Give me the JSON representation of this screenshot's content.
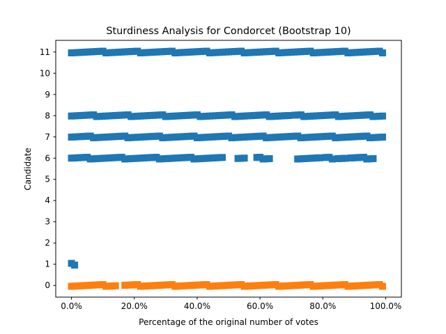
{
  "chart_data": {
    "type": "scatter",
    "title": "Sturdiness Analysis for Condorcet (Bootstrap 10)",
    "xlabel": "Percentage of the original number of votes",
    "ylabel": "Candidate",
    "xlim": [
      -0.05,
      1.05
    ],
    "ylim": [
      -0.55,
      11.55
    ],
    "xticks": [
      0.0,
      0.2,
      0.4,
      0.6,
      0.8,
      1.0
    ],
    "xtick_labels": [
      "0.0%",
      "20.0%",
      "40.0%",
      "60.0%",
      "80.0%",
      "100.0%"
    ],
    "yticks": [
      0,
      1,
      2,
      3,
      4,
      5,
      6,
      7,
      8,
      9,
      10,
      11
    ],
    "ytick_labels": [
      "0",
      "1",
      "2",
      "3",
      "4",
      "5",
      "6",
      "7",
      "8",
      "9",
      "10",
      "11"
    ],
    "grid": false,
    "marker": "square",
    "series": [
      {
        "color": "#1f77b4",
        "bands": [
          {
            "candidate": 11,
            "segments": [
              [
                0.0,
                0.99
              ]
            ]
          },
          {
            "candidate": 8,
            "segments": [
              [
                0.0,
                0.48
              ],
              [
                0.49,
                0.69
              ],
              [
                0.71,
                0.99
              ]
            ]
          },
          {
            "candidate": 7,
            "segments": [
              [
                0.0,
                0.99
              ]
            ]
          },
          {
            "candidate": 6,
            "segments": [
              [
                0.0,
                0.4
              ],
              [
                0.41,
                0.48
              ],
              [
                0.53,
                0.55
              ],
              [
                0.59,
                0.63
              ],
              [
                0.72,
                0.79
              ],
              [
                0.81,
                0.83
              ],
              [
                0.85,
                0.87
              ],
              [
                0.89,
                0.93
              ],
              [
                0.94,
                0.96
              ]
            ]
          },
          {
            "candidate": 1,
            "segments": [
              [
                0.0,
                0.01
              ]
            ]
          }
        ]
      },
      {
        "color": "#ff7f0e",
        "bands": [
          {
            "candidate": 0,
            "segments": [
              [
                0.0,
                0.14
              ],
              [
                0.17,
                0.24
              ],
              [
                0.25,
                0.99
              ]
            ]
          }
        ]
      }
    ]
  }
}
